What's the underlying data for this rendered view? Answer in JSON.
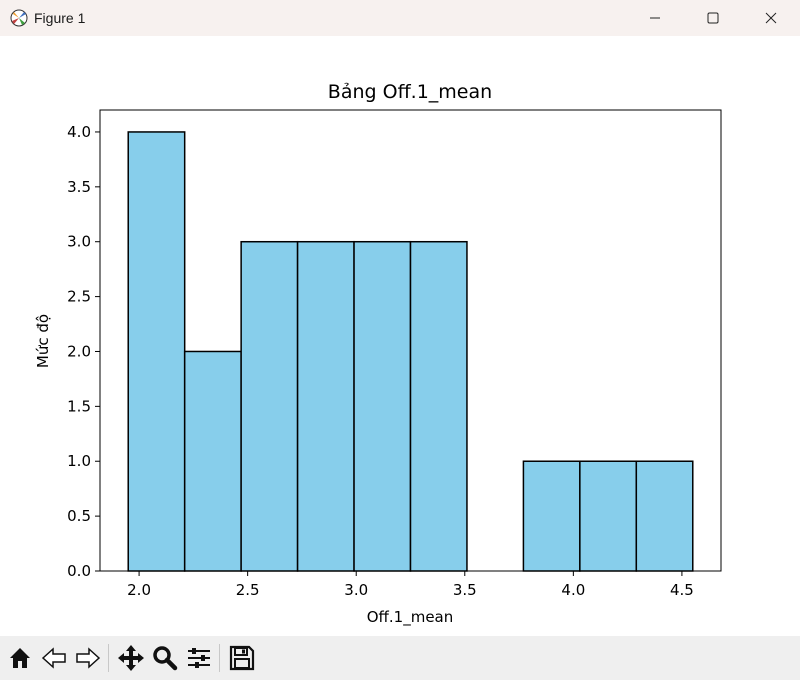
{
  "window": {
    "title": "Figure 1",
    "icon": "matplotlib-icon",
    "controls": [
      "minimize-icon",
      "maximize-icon",
      "close-icon"
    ]
  },
  "toolbar": {
    "buttons": [
      "home-icon",
      "back-icon",
      "forward-icon",
      "pan-icon",
      "zoom-icon",
      "configure-subplots-icon",
      "save-icon"
    ]
  },
  "chart_data": {
    "type": "bar",
    "title": "Bảng Off.1_mean",
    "xlabel": "Off.1_mean",
    "ylabel": "Mức độ",
    "bin_edges": [
      1.95,
      2.21,
      2.47,
      2.73,
      2.99,
      3.25,
      3.51,
      3.77,
      4.03,
      4.29,
      4.55
    ],
    "values": [
      4,
      2,
      3,
      3,
      3,
      3,
      0,
      1,
      1,
      1
    ],
    "xlim": [
      1.82,
      4.68
    ],
    "ylim": [
      0,
      4.2
    ],
    "x_ticks": [
      2.0,
      2.5,
      3.0,
      3.5,
      4.0,
      4.5
    ],
    "x_tick_labels": [
      "2.0",
      "2.5",
      "3.0",
      "3.5",
      "4.0",
      "4.5"
    ],
    "y_ticks": [
      0,
      0.5,
      1,
      1.5,
      2,
      2.5,
      3,
      3.5,
      4
    ],
    "y_tick_labels": [
      "0.0",
      "0.5",
      "1.0",
      "1.5",
      "2.0",
      "2.5",
      "3.0",
      "3.5",
      "4.0"
    ],
    "bar_color": "#87ceeb",
    "edge_color": "#000000",
    "grid": false
  }
}
